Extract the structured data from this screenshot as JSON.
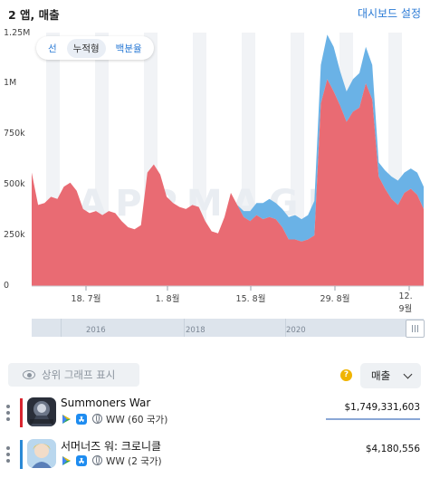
{
  "header": {
    "title": "2 앱, 매출",
    "settings_link": "대시보드 설정"
  },
  "chart_data": {
    "type": "area",
    "stacked": true,
    "y_ticks": [
      "1.25M",
      "1M",
      "750k",
      "500k",
      "250k",
      "0"
    ],
    "ylim": [
      0,
      1250000
    ],
    "x_ticks": [
      "18. 7월",
      "1. 8월",
      "15. 8월",
      "29. 8월",
      "12. 9월"
    ],
    "watermark": "APPMAGIC",
    "series": [
      {
        "color": "#e96b73",
        "values": [
          560000,
          400000,
          410000,
          440000,
          430000,
          490000,
          510000,
          470000,
          380000,
          360000,
          370000,
          350000,
          370000,
          360000,
          320000,
          290000,
          280000,
          300000,
          560000,
          600000,
          550000,
          440000,
          410000,
          390000,
          380000,
          400000,
          390000,
          320000,
          270000,
          260000,
          340000,
          460000,
          400000,
          340000,
          320000,
          350000,
          330000,
          340000,
          330000,
          290000,
          230000,
          230000,
          220000,
          230000,
          250000,
          900000,
          1020000,
          960000,
          890000,
          810000,
          860000,
          880000,
          1000000,
          920000,
          540000,
          480000,
          430000,
          400000,
          460000,
          480000,
          450000,
          380000
        ]
      },
      {
        "color": "#6ab2e6",
        "values": [
          0,
          0,
          0,
          0,
          0,
          0,
          0,
          0,
          0,
          0,
          0,
          0,
          0,
          0,
          0,
          0,
          0,
          0,
          0,
          0,
          0,
          0,
          0,
          0,
          0,
          0,
          0,
          0,
          0,
          0,
          0,
          0,
          0,
          30000,
          50000,
          60000,
          80000,
          90000,
          80000,
          90000,
          110000,
          120000,
          110000,
          120000,
          170000,
          190000,
          220000,
          220000,
          170000,
          150000,
          160000,
          170000,
          180000,
          170000,
          70000,
          90000,
          110000,
          120000,
          100000,
          100000,
          110000,
          110000
        ]
      }
    ]
  },
  "view_modes": {
    "line": "선",
    "stacked": "누적형",
    "percent": "백분율"
  },
  "navigator": {
    "years": [
      "2016",
      "2018",
      "2020"
    ]
  },
  "controls": {
    "show_top_charts": "상위 그래프 표시",
    "help": "?",
    "metric": "매출"
  },
  "apps": [
    {
      "name": "Summoners War",
      "region": "WW (60 국가)",
      "value": "$1,749,331,603",
      "color": "#d9252f",
      "bar_fraction": 1.0
    },
    {
      "name": "서머너즈 워: 크로니클",
      "region": "WW (2 국가)",
      "value": "$4,180,556",
      "color": "#2a89d6",
      "bar_fraction": 0.05
    }
  ]
}
